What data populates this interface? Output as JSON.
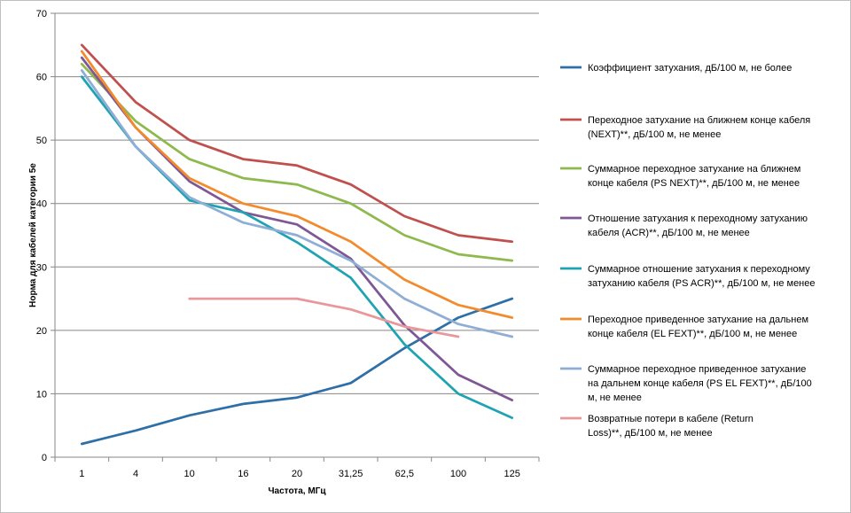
{
  "chart_data": {
    "type": "line",
    "xlabel": "Частота,  МГц",
    "ylabel": "Норма для кабелей категории 5е",
    "categories": [
      "1",
      "4",
      "10",
      "16",
      "20",
      "31,25",
      "62,5",
      "100",
      "125"
    ],
    "ylim": [
      0,
      70
    ],
    "yticks": [
      0,
      10,
      20,
      30,
      40,
      50,
      60,
      70
    ],
    "grid": "horizontal",
    "legend_position": "right",
    "series": [
      {
        "name": "Коэффициент  затухания, дБ/100 м, не более",
        "legend_lines": [
          "Коэффициент  затухания, дБ/100 м, не более"
        ],
        "color": "#2e6fa8",
        "values": [
          2.1,
          4.2,
          6.6,
          8.4,
          9.4,
          11.7,
          17.2,
          22,
          25
        ]
      },
      {
        "name": "Переходное  затухание на ближнем  конце кабеля (NEXT)**,   дБ/100 м,  не менее",
        "legend_lines": [
          "Переходное  затухание на ближнем  конце кабеля",
          "(NEXT)**,   дБ/100 м,  не менее"
        ],
        "color": "#c0504d",
        "values": [
          65,
          56,
          50,
          47,
          46,
          43,
          38,
          35,
          34
        ]
      },
      {
        "name": "Суммарное переходное  затухание на ближнем конце кабеля (PS NEXT)**,   дБ/100 м, не менее",
        "legend_lines": [
          "Суммарное переходное  затухание на ближнем",
          "конце кабеля (PS NEXT)**,   дБ/100 м, не менее"
        ],
        "color": "#8db94d",
        "values": [
          62,
          53,
          47,
          44,
          43,
          40,
          35,
          32,
          31
        ]
      },
      {
        "name": "Отношение  затухания к переходному затуханию кабеля (ACR)**,  дБ/100 м, не менее",
        "legend_lines": [
          "Отношение  затухания к переходному затуханию",
          "кабеля (ACR)**,  дБ/100 м, не менее"
        ],
        "color": "#7f5795",
        "values": [
          63,
          52,
          43.5,
          38.6,
          36.7,
          31.3,
          20.8,
          13,
          9
        ]
      },
      {
        "name": "Суммарное отношение  затухания к переходному затуханию кабеля (PS ACR)**,  дБ/100 м, не менее",
        "legend_lines": [
          "Суммарное отношение  затухания к переходному",
          "затуханию кабеля (PS ACR)**,  дБ/100 м, не менее"
        ],
        "color": "#1fa3b3",
        "values": [
          60,
          49,
          40.5,
          38.6,
          33.9,
          28.3,
          17.8,
          10,
          6.2
        ]
      },
      {
        "name": "Переходное  приведенное  затухание на дальнем конце кабеля (EL FEXT)**,  дБ/100 м, не менее",
        "legend_lines": [
          "Переходное  приведенное  затухание на дальнем",
          "конце кабеля (EL FEXT)**,  дБ/100 м, не менее"
        ],
        "color": "#f38b2c",
        "values": [
          64,
          52,
          44,
          40,
          38,
          34,
          28,
          24,
          22
        ]
      },
      {
        "name": "Суммарное переходное  приведенное  затухание на дальнем конце кабеля  (PS EL FEXT)**,  дБ/100 м,  не менее",
        "legend_lines": [
          "Суммарное переходное  приведенное  затухание",
          "на дальнем конце кабеля  (PS EL FEXT)**,  дБ/100",
          "м,  не менее"
        ],
        "color": "#8eaed6",
        "values": [
          61,
          49,
          41,
          37,
          35,
          31,
          25,
          21,
          19
        ]
      },
      {
        "name": "Возвратные  потери в кабеле (Return Loss)**,  дБ/100 м, не менее",
        "legend_lines": [
          "Возвратные  потери в кабеле (Return",
          "Loss)**,  дБ/100 м, не менее"
        ],
        "color": "#e8979a",
        "values": [
          null,
          null,
          25,
          25,
          25,
          23.3,
          20.6,
          19,
          null
        ]
      }
    ]
  }
}
